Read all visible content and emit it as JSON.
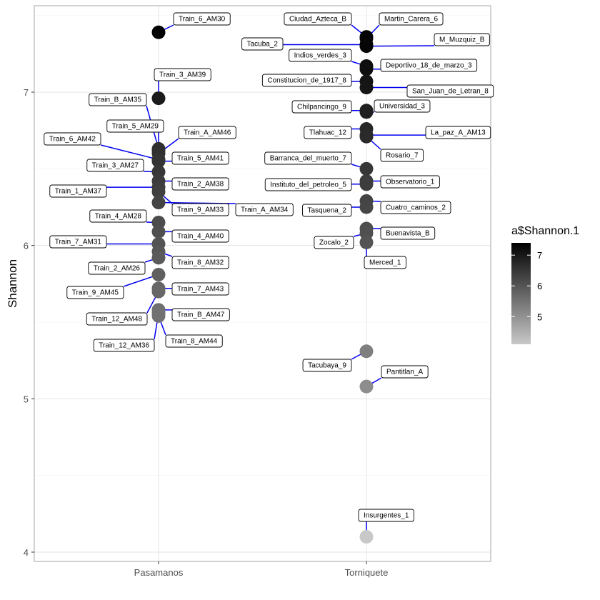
{
  "chart_data": {
    "type": "scatter",
    "title": "",
    "xlabel": "",
    "ylabel": "Shannon",
    "ylim": [
      3.95,
      7.55
    ],
    "yticks": [
      4,
      5,
      6,
      7
    ],
    "categories": [
      "Pasamanos",
      "Torniquete"
    ],
    "grid": true,
    "legend": {
      "title": "a$Shannon.1",
      "position": "right",
      "breaks": [
        5,
        6,
        7
      ],
      "range": [
        4.1,
        7.4
      ],
      "low_color": "#c8c8c8",
      "high_color": "#000000"
    },
    "leader_color": "#0000ee",
    "series": [
      {
        "group": "Pasamanos",
        "points": [
          {
            "label": "Train_6_AM30",
            "y": 7.39
          },
          {
            "label": "Train_3_AM39",
            "y": 6.96
          },
          {
            "label": "Train_B_AM35",
            "y": 6.63
          },
          {
            "label": "Train_5_AM29",
            "y": 6.62
          },
          {
            "label": "Train_A_AM46",
            "y": 6.6
          },
          {
            "label": "Train_6_AM42",
            "y": 6.56
          },
          {
            "label": "Train_5_AM41",
            "y": 6.55
          },
          {
            "label": "Train_3_AM27",
            "y": 6.48
          },
          {
            "label": "Train_2_AM38",
            "y": 6.42
          },
          {
            "label": "Train_1_AM37",
            "y": 6.38
          },
          {
            "label": "Train_9_AM33",
            "y": 6.35
          },
          {
            "label": "Train_A_AM34",
            "y": 6.28
          },
          {
            "label": "Train_4_AM28",
            "y": 6.15
          },
          {
            "label": "Train_4_AM40",
            "y": 6.09
          },
          {
            "label": "Train_7_AM31",
            "y": 6.01
          },
          {
            "label": "Train_8_AM32",
            "y": 5.96
          },
          {
            "label": "Train_2_AM26",
            "y": 5.92
          },
          {
            "label": "Train_9_AM45",
            "y": 5.81
          },
          {
            "label": "Train_7_AM43",
            "y": 5.72
          },
          {
            "label": "Train_12_AM48",
            "y": 5.7
          },
          {
            "label": "Train_B_AM47",
            "y": 5.58
          },
          {
            "label": "Train_12_AM36",
            "y": 5.56
          },
          {
            "label": "Train_8_AM44",
            "y": 5.54
          }
        ]
      },
      {
        "group": "Torniquete",
        "points": [
          {
            "label": "Ciudad_Azteca_B",
            "y": 7.36
          },
          {
            "label": "Martin_Carera_6",
            "y": 7.35
          },
          {
            "label": "Tacuba_2",
            "y": 7.31
          },
          {
            "label": "M_Muzquiz_B",
            "y": 7.3
          },
          {
            "label": "Indios_verdes_3",
            "y": 7.17
          },
          {
            "label": "Deportivo_18_de_marzo_3",
            "y": 7.15
          },
          {
            "label": "Constitucion_de_1917_8",
            "y": 7.07
          },
          {
            "label": "San_Juan_de_Letran_8",
            "y": 7.03
          },
          {
            "label": "Chilpancingo_9",
            "y": 6.88
          },
          {
            "label": "Universidad_3",
            "y": 6.87
          },
          {
            "label": "Tlahuac_12",
            "y": 6.76
          },
          {
            "label": "La_paz_A_AM13",
            "y": 6.72
          },
          {
            "label": "Rosario_7",
            "y": 6.71
          },
          {
            "label": "Barranca_del_muerto_7",
            "y": 6.5
          },
          {
            "label": "Observatorio_1",
            "y": 6.42
          },
          {
            "label": "Instituto_del_petroleo_5",
            "y": 6.4
          },
          {
            "label": "Cuatro_caminos_2",
            "y": 6.29
          },
          {
            "label": "Tasquena_2",
            "y": 6.25
          },
          {
            "label": "Buenavista_B",
            "y": 6.11
          },
          {
            "label": "Zocalo_2",
            "y": 6.08
          },
          {
            "label": "Merced_1",
            "y": 6.02
          },
          {
            "label": "Tacubaya_9",
            "y": 5.31
          },
          {
            "label": "Pantitlan_A",
            "y": 5.08
          },
          {
            "label": "Insurgentes_1",
            "y": 4.1
          }
        ]
      }
    ]
  }
}
